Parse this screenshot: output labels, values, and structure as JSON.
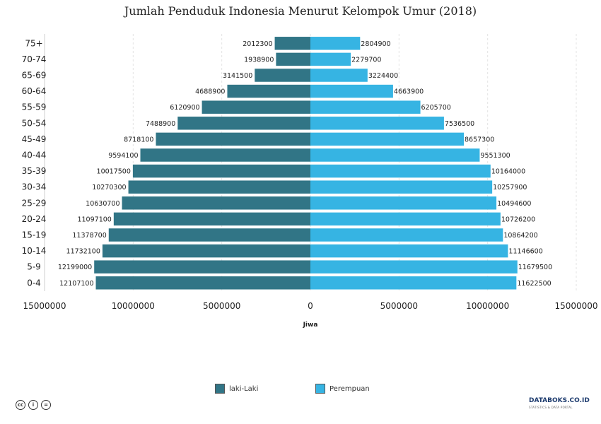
{
  "title": "Jumlah Penduduk Indonesia Menurut Kelompok Umur (2018)",
  "colors": {
    "male": "#317586",
    "female": "#36b4e3"
  },
  "legend": {
    "male": "laki-Laki",
    "female": "Perempuan"
  },
  "brand": {
    "name": "DATABOKS.CO.ID",
    "tagline": "STATISTICS & DATA PORTAL"
  },
  "cc_icons": [
    "cc-icon",
    "by-icon",
    "nd-icon"
  ],
  "chart_data": {
    "type": "bar",
    "orientation": "horizontal-pyramid",
    "title": "Jumlah Penduduk Indonesia Menurut Kelompok Umur (2018)",
    "xlabel": "Jiwa",
    "ylabel": "",
    "xlim": [
      -15000000,
      15000000
    ],
    "xticks": [
      "15000000",
      "10000000",
      "5000000",
      "0",
      "5000000",
      "10000000",
      "15000000"
    ],
    "grid": true,
    "legend_position": "bottom",
    "categories": [
      "75+",
      "70-74",
      "65-69",
      "60-64",
      "55-59",
      "50-54",
      "45-49",
      "40-44",
      "35-39",
      "30-34",
      "25-29",
      "20-24",
      "15-19",
      "10-14",
      "5-9",
      "0-4"
    ],
    "series": [
      {
        "name": "laki-Laki",
        "values": [
          2012300,
          1938900,
          3141500,
          4688900,
          6120900,
          7488900,
          8718100,
          9594100,
          10017500,
          10270300,
          10630700,
          11097100,
          11378700,
          11732100,
          12199000,
          12107100
        ]
      },
      {
        "name": "Perempuan",
        "values": [
          2804900,
          2279700,
          3224400,
          4663900,
          6205700,
          7536500,
          8657300,
          9551300,
          10164000,
          10257900,
          10494600,
          10726200,
          10864200,
          11146600,
          11679500,
          11622500
        ]
      }
    ]
  }
}
